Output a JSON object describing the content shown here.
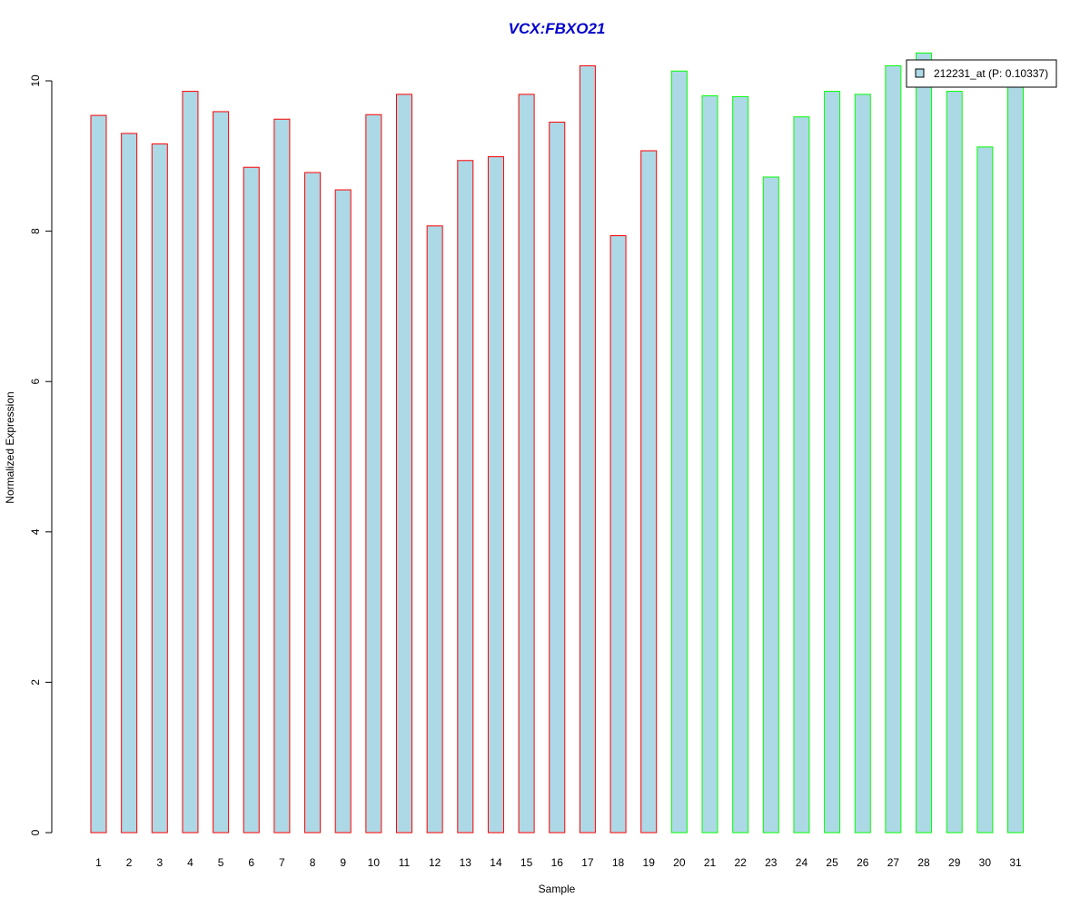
{
  "chart_data": {
    "type": "bar",
    "title": "VCX:FBXO21",
    "xlabel": "Sample",
    "ylabel": "Normalized Expression",
    "ylim": [
      0,
      10.4
    ],
    "y_ticks": [
      0,
      2,
      4,
      6,
      8,
      10
    ],
    "categories": [
      "1",
      "2",
      "3",
      "4",
      "5",
      "6",
      "7",
      "8",
      "9",
      "10",
      "11",
      "12",
      "13",
      "14",
      "15",
      "16",
      "17",
      "18",
      "19",
      "20",
      "21",
      "22",
      "23",
      "24",
      "25",
      "26",
      "27",
      "28",
      "29",
      "30",
      "31"
    ],
    "values": [
      9.54,
      9.3,
      9.16,
      9.86,
      9.59,
      8.85,
      9.49,
      8.78,
      8.55,
      9.55,
      9.82,
      8.07,
      8.94,
      8.99,
      9.82,
      9.45,
      10.2,
      7.94,
      9.07,
      10.13,
      9.8,
      9.79,
      8.72,
      9.52,
      9.86,
      9.82,
      10.2,
      10.37,
      9.86,
      9.12,
      10.0
    ],
    "groups": [
      "red",
      "red",
      "red",
      "red",
      "red",
      "red",
      "red",
      "red",
      "red",
      "red",
      "red",
      "red",
      "red",
      "red",
      "red",
      "red",
      "red",
      "red",
      "red",
      "green",
      "green",
      "green",
      "green",
      "green",
      "green",
      "green",
      "green",
      "green",
      "green",
      "green",
      "green"
    ],
    "legend": {
      "label": "212231_at (P: 0.10337)",
      "placement": "top-right"
    },
    "colors": {
      "fill": "#add8e6",
      "red_border": "#ff0000",
      "green_border": "#00ff00",
      "title": "#0000cd",
      "axis": "#000000"
    },
    "grid": false
  }
}
